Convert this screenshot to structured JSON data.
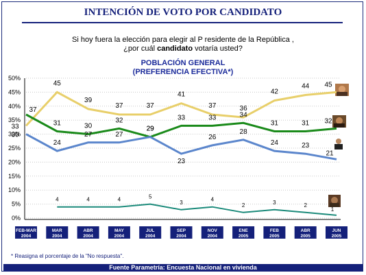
{
  "title": "INTENCIÓN DE VOTO POR CANDIDATO",
  "question_line1": "Si hoy fuera la elección para elegir al P residente de la República ,",
  "question_line2_pre": "¿por cuál ",
  "question_line2_bold": "candidato",
  "question_line2_post": " votaría usted?",
  "subtitle_line1": "POBLACIÓN GENERAL",
  "subtitle_line2": "(PREFERENCIA EFECTIVA*)",
  "footnote": "* Reasigna el porcentaje de la \"No respuesta\".",
  "source": "Fuente Parametría: Encuesta Nacional en vivienda",
  "colors": {
    "yellow": "#e8cf6a",
    "green": "#1a8a1a",
    "blue": "#5b86cc",
    "teal": "#1a8a7a",
    "navy": "#14207a",
    "grid": "#c8c8c8"
  },
  "chart_data": {
    "type": "line",
    "categories": [
      [
        "FEB-MAR",
        "2004"
      ],
      [
        "MAR",
        "2004"
      ],
      [
        "ABR",
        "2004"
      ],
      [
        "MAY",
        "2004"
      ],
      [
        "JUL",
        "2004"
      ],
      [
        "SEP",
        "2004"
      ],
      [
        "NOV",
        "2004"
      ],
      [
        "ENE",
        "2005"
      ],
      [
        "FEB",
        "2005"
      ],
      [
        "ABR",
        "2005"
      ],
      [
        "JUN",
        "2005"
      ]
    ],
    "y_ticks": [
      "0%",
      "5%",
      "10%",
      "15%",
      "20%",
      "25%",
      "30%",
      "35%",
      "40%",
      "45%",
      "50%"
    ],
    "ylim": [
      0,
      50
    ],
    "grid": true,
    "series": [
      {
        "color": "yellow",
        "values": [
          33,
          45,
          39,
          37,
          37,
          41,
          37,
          36,
          42,
          44,
          45
        ]
      },
      {
        "color": "green",
        "values": [
          37,
          31,
          30,
          32,
          29,
          33,
          33,
          34,
          31,
          31,
          32
        ]
      },
      {
        "color": "blue",
        "values": [
          30,
          24,
          27,
          27,
          29,
          23,
          26,
          28,
          24,
          23,
          21
        ]
      },
      {
        "color": "teal",
        "values": [
          null,
          4,
          4,
          4,
          5,
          3,
          4,
          2,
          3,
          2,
          1
        ]
      }
    ]
  }
}
